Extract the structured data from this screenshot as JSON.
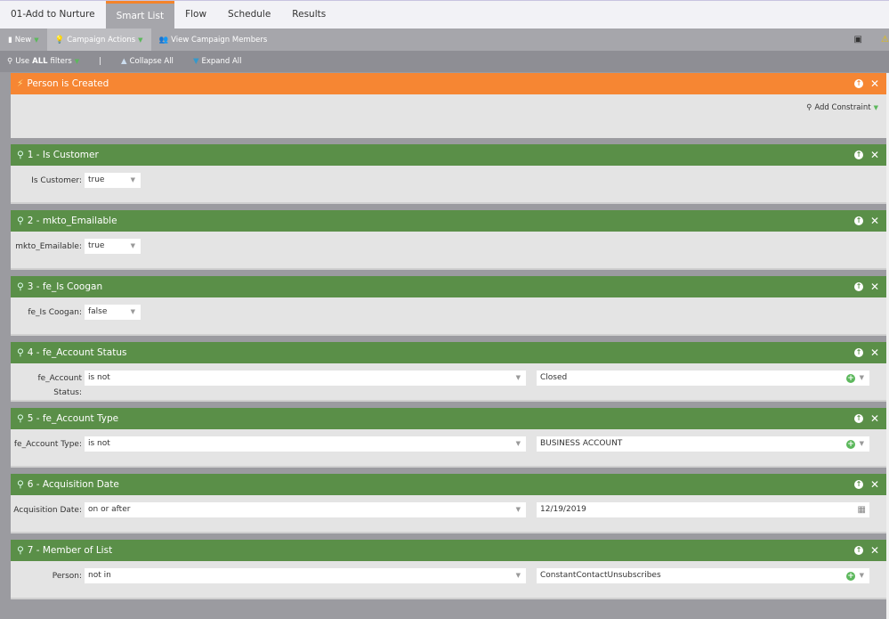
{
  "tabs": [
    "01-Add to Nurture",
    "Smart List",
    "Flow",
    "Schedule",
    "Results"
  ],
  "active_tab": 1,
  "toolbar": {
    "new": "New",
    "campaign_actions": "Campaign Actions",
    "view_members": "View Campaign Members"
  },
  "filterbar": {
    "use_prefix": "Use ",
    "use_all": "ALL",
    "use_suffix": " filters",
    "separator": "|",
    "collapse": "Collapse All",
    "expand": "Expand All"
  },
  "trigger": {
    "title": "Person is Created",
    "add_constraint": "Add Constraint"
  },
  "filters": [
    {
      "title": "1 - Is Customer",
      "label": "Is Customer:",
      "op": "true",
      "value": null
    },
    {
      "title": "2 - mkto_Emailable",
      "label": "mkto_Emailable:",
      "op": "true",
      "value": null
    },
    {
      "title": "3 - fe_Is Coogan",
      "label": "fe_Is Coogan:",
      "op": "false",
      "value": null
    },
    {
      "title": "4 - fe_Account Status",
      "label": "fe_Account Status:",
      "op": "is not",
      "value": "Closed"
    },
    {
      "title": "5 - fe_Account Type",
      "label": "fe_Account Type:",
      "op": "is not",
      "value": "BUSINESS ACCOUNT"
    },
    {
      "title": "6 - Acquisition Date",
      "label": "Acquisition Date:",
      "op": "on or after",
      "value": "12/19/2019",
      "date": true
    },
    {
      "title": "7 - Member of List",
      "label": "Person:",
      "op": "not in",
      "value": "ConstantContactUnsubscribes"
    }
  ],
  "colors": {
    "trigger": "#f68633",
    "filter": "#5a8f48",
    "accent": "#5cb85c"
  }
}
